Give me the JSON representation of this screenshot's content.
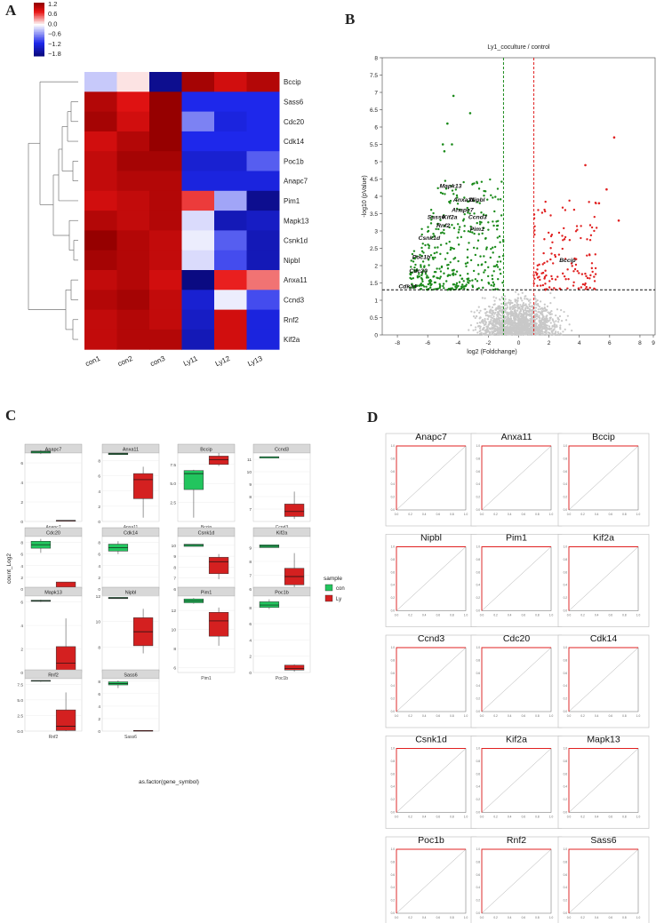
{
  "panel_labels": {
    "a": "A",
    "b": "B",
    "c": "C",
    "d": "D"
  },
  "chart_data": [
    {
      "type": "heatmap",
      "panel": "A",
      "columns": [
        "con1",
        "con2",
        "con3",
        "Ly11",
        "Ly12",
        "Ly13"
      ],
      "rows": [
        "Bccip",
        "Sass6",
        "Cdc20",
        "Cdk14",
        "Poc1b",
        "Anapc7",
        "Pim1",
        "Mapk13",
        "Csnk1d",
        "Nipbl",
        "Anxa11",
        "Ccnd3",
        "Rnf2",
        "Kif2a"
      ],
      "values": [
        [
          -0.3,
          0.1,
          -1.9,
          1.3,
          1.0,
          1.2
        ],
        [
          1.2,
          0.9,
          1.4,
          -1.2,
          -1.2,
          -1.2
        ],
        [
          1.3,
          1.0,
          1.5,
          -0.7,
          -1.3,
          -1.2
        ],
        [
          1.0,
          1.2,
          1.7,
          -1.2,
          -1.2,
          -1.2
        ],
        [
          1.1,
          1.3,
          1.3,
          -1.4,
          -1.4,
          -0.9
        ],
        [
          1.1,
          1.2,
          1.2,
          -1.3,
          -1.3,
          -1.3
        ],
        [
          1.0,
          1.1,
          1.2,
          0.7,
          -0.5,
          -1.9
        ],
        [
          1.2,
          1.1,
          1.2,
          -0.2,
          -1.6,
          -1.5
        ],
        [
          1.5,
          1.2,
          1.1,
          -0.1,
          -0.9,
          -1.6
        ],
        [
          1.3,
          1.2,
          1.1,
          -0.2,
          -1.0,
          -1.6
        ],
        [
          1.1,
          1.2,
          1.0,
          -2.0,
          0.8,
          0.5
        ],
        [
          1.2,
          1.3,
          1.1,
          -1.4,
          -0.1,
          -1.0
        ],
        [
          1.1,
          1.2,
          1.1,
          -1.5,
          1.0,
          -1.3
        ],
        [
          1.1,
          1.2,
          1.2,
          -1.6,
          1.0,
          -1.3
        ]
      ],
      "colorbar": {
        "ticks": [
          "1.2",
          "0.6",
          "0.0",
          "−0.6",
          "−1.2",
          "−1.8"
        ],
        "range": [
          -2,
          1.4
        ]
      }
    },
    {
      "type": "scatter",
      "panel": "B",
      "title": "Ly1_coculture / control",
      "xlabel": "log2 (Foldchange)",
      "ylabel": "-log10 (pValue)",
      "xlim": [
        -9,
        9
      ],
      "ylim": [
        0,
        8
      ],
      "xticks": [
        "-8",
        "-6",
        "-4",
        "-2",
        "0",
        "2",
        "4",
        "6",
        "8",
        "9"
      ],
      "yticks": [
        "0",
        "0.5",
        "1",
        "1.5",
        "2",
        "2.5",
        "3",
        "3.5",
        "4",
        "4.5",
        "5",
        "5.5",
        "6",
        "6.5",
        "7",
        "7.5",
        "8"
      ],
      "thresholds": {
        "fc_down": -1,
        "fc_up": 1,
        "p": 1.3
      },
      "labeled_genes": [
        {
          "name": "Mapk13",
          "x": -4.4,
          "y": 4.3
        },
        {
          "name": "Anxa11",
          "x": -3.5,
          "y": 3.9
        },
        {
          "name": "Nipbl",
          "x": -2.4,
          "y": 3.9
        },
        {
          "name": "Anapc7",
          "x": -3.6,
          "y": 3.6
        },
        {
          "name": "Sass6",
          "x": -5.2,
          "y": 3.4
        },
        {
          "name": "Kif2a",
          "x": -4.2,
          "y": 3.4
        },
        {
          "name": "Ccnd3",
          "x": -2.5,
          "y": 3.4
        },
        {
          "name": "Rnf2",
          "x": -4.6,
          "y": 3.15
        },
        {
          "name": "Pim1",
          "x": -2.4,
          "y": 3.05
        },
        {
          "name": "Csnk1d",
          "x": -5.8,
          "y": 2.8
        },
        {
          "name": "Poc1b",
          "x": -6.2,
          "y": 2.25
        },
        {
          "name": "Cdc20",
          "x": -6.4,
          "y": 1.85
        },
        {
          "name": "Cdk14",
          "x": -7.1,
          "y": 1.4
        },
        {
          "name": "Bccip",
          "x": 3.5,
          "y": 2.15
        }
      ],
      "series_colors": {
        "down": "#1a8a1a",
        "up": "#e02020",
        "ns": "#c8c8c8"
      }
    },
    {
      "type": "box",
      "panel": "C",
      "ylabel": "count_Log2",
      "xlabel": "as.factor(gene_symbol)",
      "legend": {
        "title": "sample",
        "items": [
          {
            "name": "con",
            "color": "#22c55e"
          },
          {
            "name": "Ly",
            "color": "#d42020"
          }
        ]
      },
      "facets": [
        {
          "gene": "Anapc7",
          "ylim": [
            0,
            7
          ],
          "yticks": [
            "0",
            "2",
            "4",
            "6"
          ],
          "con": [
            6.9,
            7.0,
            7.1,
            7.2,
            7.3
          ],
          "ly": [
            0.1,
            0.1,
            0.1,
            0.1,
            0.1
          ]
        },
        {
          "gene": "Anxa11",
          "ylim": [
            0,
            9
          ],
          "yticks": [
            "0",
            "2",
            "4",
            "6",
            "8"
          ],
          "con": [
            8.8,
            8.8,
            8.9,
            9.0,
            9.0
          ],
          "ly": [
            0.5,
            3.0,
            5.5,
            6.3,
            7.2
          ]
        },
        {
          "gene": "Bccip",
          "ylim": [
            0,
            9
          ],
          "yticks": [
            "2.5",
            "5.0",
            "7.5"
          ],
          "con": [
            0.5,
            4.2,
            6.3,
            6.7,
            6.8
          ],
          "ly": [
            7.3,
            7.5,
            8.1,
            8.6,
            9.0
          ]
        },
        {
          "gene": "Ccnd3",
          "ylim": [
            6,
            11.5
          ],
          "yticks": [
            "7",
            "8",
            "9",
            "10",
            "11"
          ],
          "con": [
            11.1,
            11.1,
            11.2,
            11.2,
            11.2
          ],
          "ly": [
            6.2,
            6.4,
            6.8,
            7.4,
            8.4
          ]
        },
        {
          "gene": "Cdc20",
          "ylim": [
            0,
            9
          ],
          "yticks": [
            "0",
            "2",
            "4",
            "6",
            "8"
          ],
          "con": [
            6.2,
            7.0,
            7.6,
            8.2,
            8.6
          ],
          "ly": [
            0.0,
            0.1,
            0.3,
            1.2,
            1.2
          ]
        },
        {
          "gene": "Cdk14",
          "ylim": [
            0,
            9
          ],
          "yticks": [
            "0",
            "2",
            "4",
            "6",
            "8"
          ],
          "con": [
            6.0,
            6.5,
            7.1,
            7.7,
            8.2
          ],
          "ly": [
            0.1,
            0.1,
            0.1,
            0.1,
            0.1
          ]
        },
        {
          "gene": "Csnk1d",
          "ylim": [
            6,
            10.8
          ],
          "yticks": [
            "6",
            "7",
            "8",
            "9",
            "10"
          ],
          "con": [
            9.9,
            9.9,
            10.0,
            10.1,
            10.1
          ],
          "ly": [
            6.9,
            7.4,
            8.5,
            8.9,
            9.2
          ]
        },
        {
          "gene": "Kif2a",
          "ylim": [
            6,
            9.8
          ],
          "yticks": [
            "6",
            "7",
            "8",
            "9"
          ],
          "con": [
            9.0,
            9.0,
            9.1,
            9.2,
            9.2
          ],
          "ly": [
            6.0,
            6.3,
            6.9,
            7.5,
            8.6
          ]
        },
        {
          "gene": "Mapk13",
          "ylim": [
            0,
            6.5
          ],
          "yticks": [
            "0",
            "2",
            "4",
            "6"
          ],
          "con": [
            6.0,
            6.05,
            6.1,
            6.15,
            6.2
          ],
          "ly": [
            0.0,
            0.1,
            0.8,
            2.2,
            4.6
          ]
        },
        {
          "gene": "Nipbl",
          "ylim": [
            6,
            12
          ],
          "yticks": [
            "8",
            "10",
            "12"
          ],
          "con": [
            11.8,
            11.8,
            11.85,
            11.9,
            11.9
          ],
          "ly": [
            7.5,
            8.1,
            9.2,
            10.3,
            11.0
          ]
        },
        {
          "gene": "Pim1",
          "ylim": [
            5.5,
            13.5
          ],
          "yticks": [
            "6",
            "8",
            "10",
            "12"
          ],
          "con": [
            12.7,
            12.8,
            13.0,
            13.2,
            13.3
          ],
          "ly": [
            8.3,
            9.3,
            10.9,
            11.8,
            12.3
          ]
        },
        {
          "gene": "Poc1b",
          "ylim": [
            0,
            9.4
          ],
          "yticks": [
            "0",
            "2",
            "4",
            "6",
            "8"
          ],
          "con": [
            7.8,
            8.0,
            8.3,
            8.7,
            9.0
          ],
          "ly": [
            0.1,
            0.3,
            0.5,
            0.9,
            1.0
          ]
        },
        {
          "gene": "Rnf2",
          "ylim": [
            0,
            8.4
          ],
          "yticks": [
            "0.0",
            "2.5",
            "5.0",
            "7.5"
          ],
          "con": [
            7.9,
            8.0,
            8.1,
            8.1,
            8.1
          ],
          "ly": [
            0.0,
            0.1,
            0.8,
            3.4,
            6.2
          ]
        },
        {
          "gene": "Sass6",
          "ylim": [
            0,
            8.4
          ],
          "yticks": [
            "0",
            "2",
            "4",
            "6",
            "8"
          ],
          "con": [
            6.9,
            7.4,
            7.6,
            7.9,
            8.1
          ],
          "ly": [
            0.0,
            0.1,
            0.1,
            0.1,
            0.1
          ]
        }
      ]
    },
    {
      "type": "line",
      "panel": "D",
      "description_free": true,
      "plots": [
        {
          "title": "Anapc7"
        },
        {
          "title": "Anxa11"
        },
        {
          "title": "Bccip"
        },
        {
          "title": "Nipbl"
        },
        {
          "title": "Pim1"
        },
        {
          "title": "Kif2a"
        },
        {
          "title": "Ccnd3"
        },
        {
          "title": "Cdc20"
        },
        {
          "title": "Cdk14"
        },
        {
          "title": "Csnk1d"
        },
        {
          "title": "Kif2a"
        },
        {
          "title": "Mapk13"
        },
        {
          "title": "Poc1b"
        },
        {
          "title": "Rnf2"
        },
        {
          "title": "Sass6"
        }
      ],
      "roc_curve_x": [
        0,
        0,
        1
      ],
      "roc_curve_y": [
        0,
        1,
        1
      ],
      "axis_ticks": [
        "0.0",
        "0.2",
        "0.4",
        "0.6",
        "0.8",
        "1.0"
      ]
    }
  ]
}
